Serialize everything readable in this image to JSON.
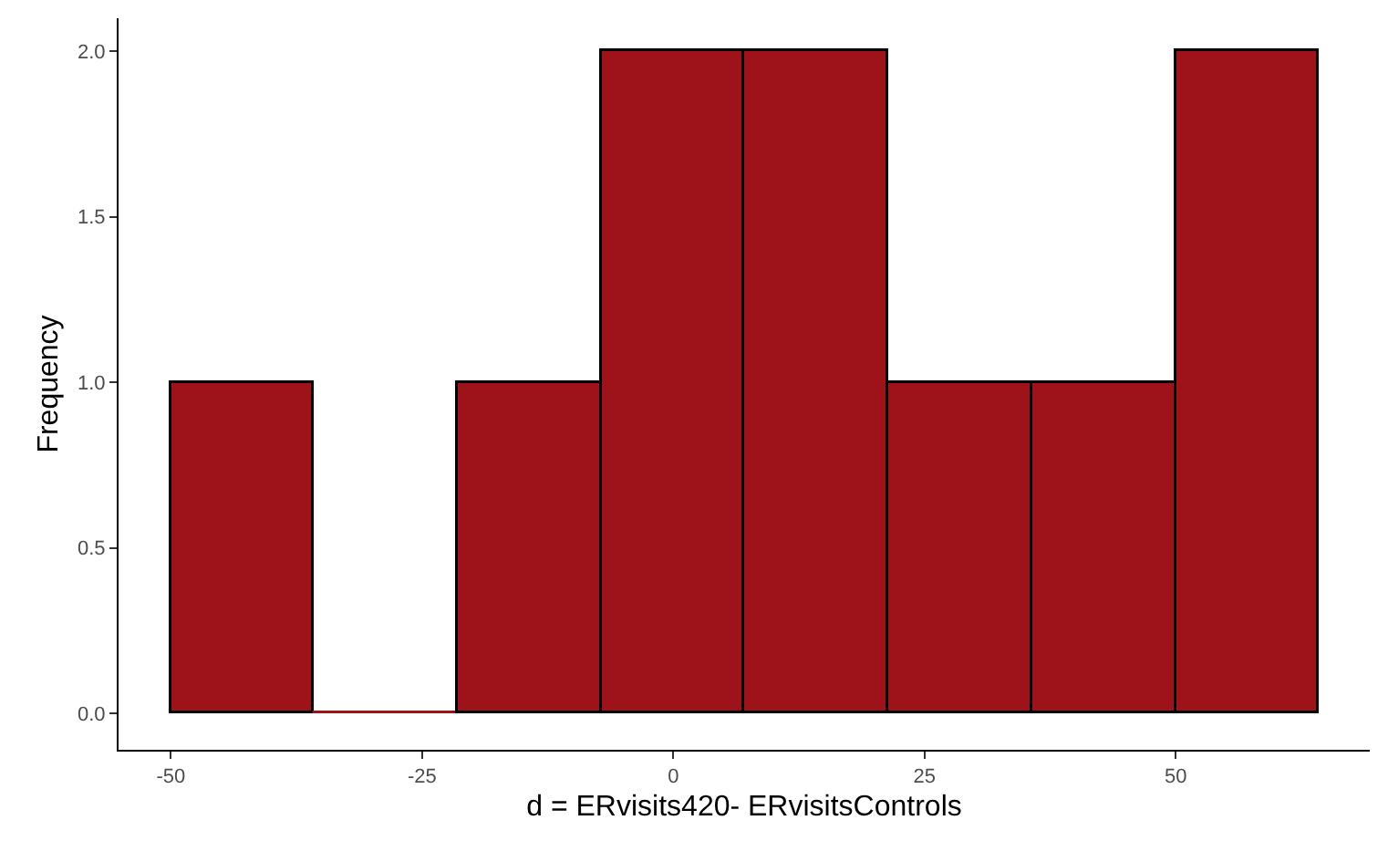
{
  "chart_data": {
    "type": "histogram",
    "xlabel": "d = ERvisits420- ERvisitsControls",
    "ylabel": "Frequency",
    "bins": [
      -50,
      -35.7,
      -21.4,
      -7.1,
      7.1,
      21.4,
      35.7,
      50,
      64.3
    ],
    "values": [
      1,
      0,
      1,
      2,
      2,
      1,
      1,
      2
    ],
    "color": "#9e1219",
    "xlim": [
      -55.2,
      69.3
    ],
    "xticks": [
      -50,
      -25,
      0,
      25,
      50
    ],
    "ylim": [
      -0.11,
      2.1
    ],
    "yticks": [
      {
        "value": 0,
        "label": "0.0"
      },
      {
        "value": 0.5,
        "label": "0.5"
      },
      {
        "value": 1,
        "label": "1.0"
      },
      {
        "value": 1.5,
        "label": "1.5"
      },
      {
        "value": 2,
        "label": "2.0"
      }
    ]
  }
}
